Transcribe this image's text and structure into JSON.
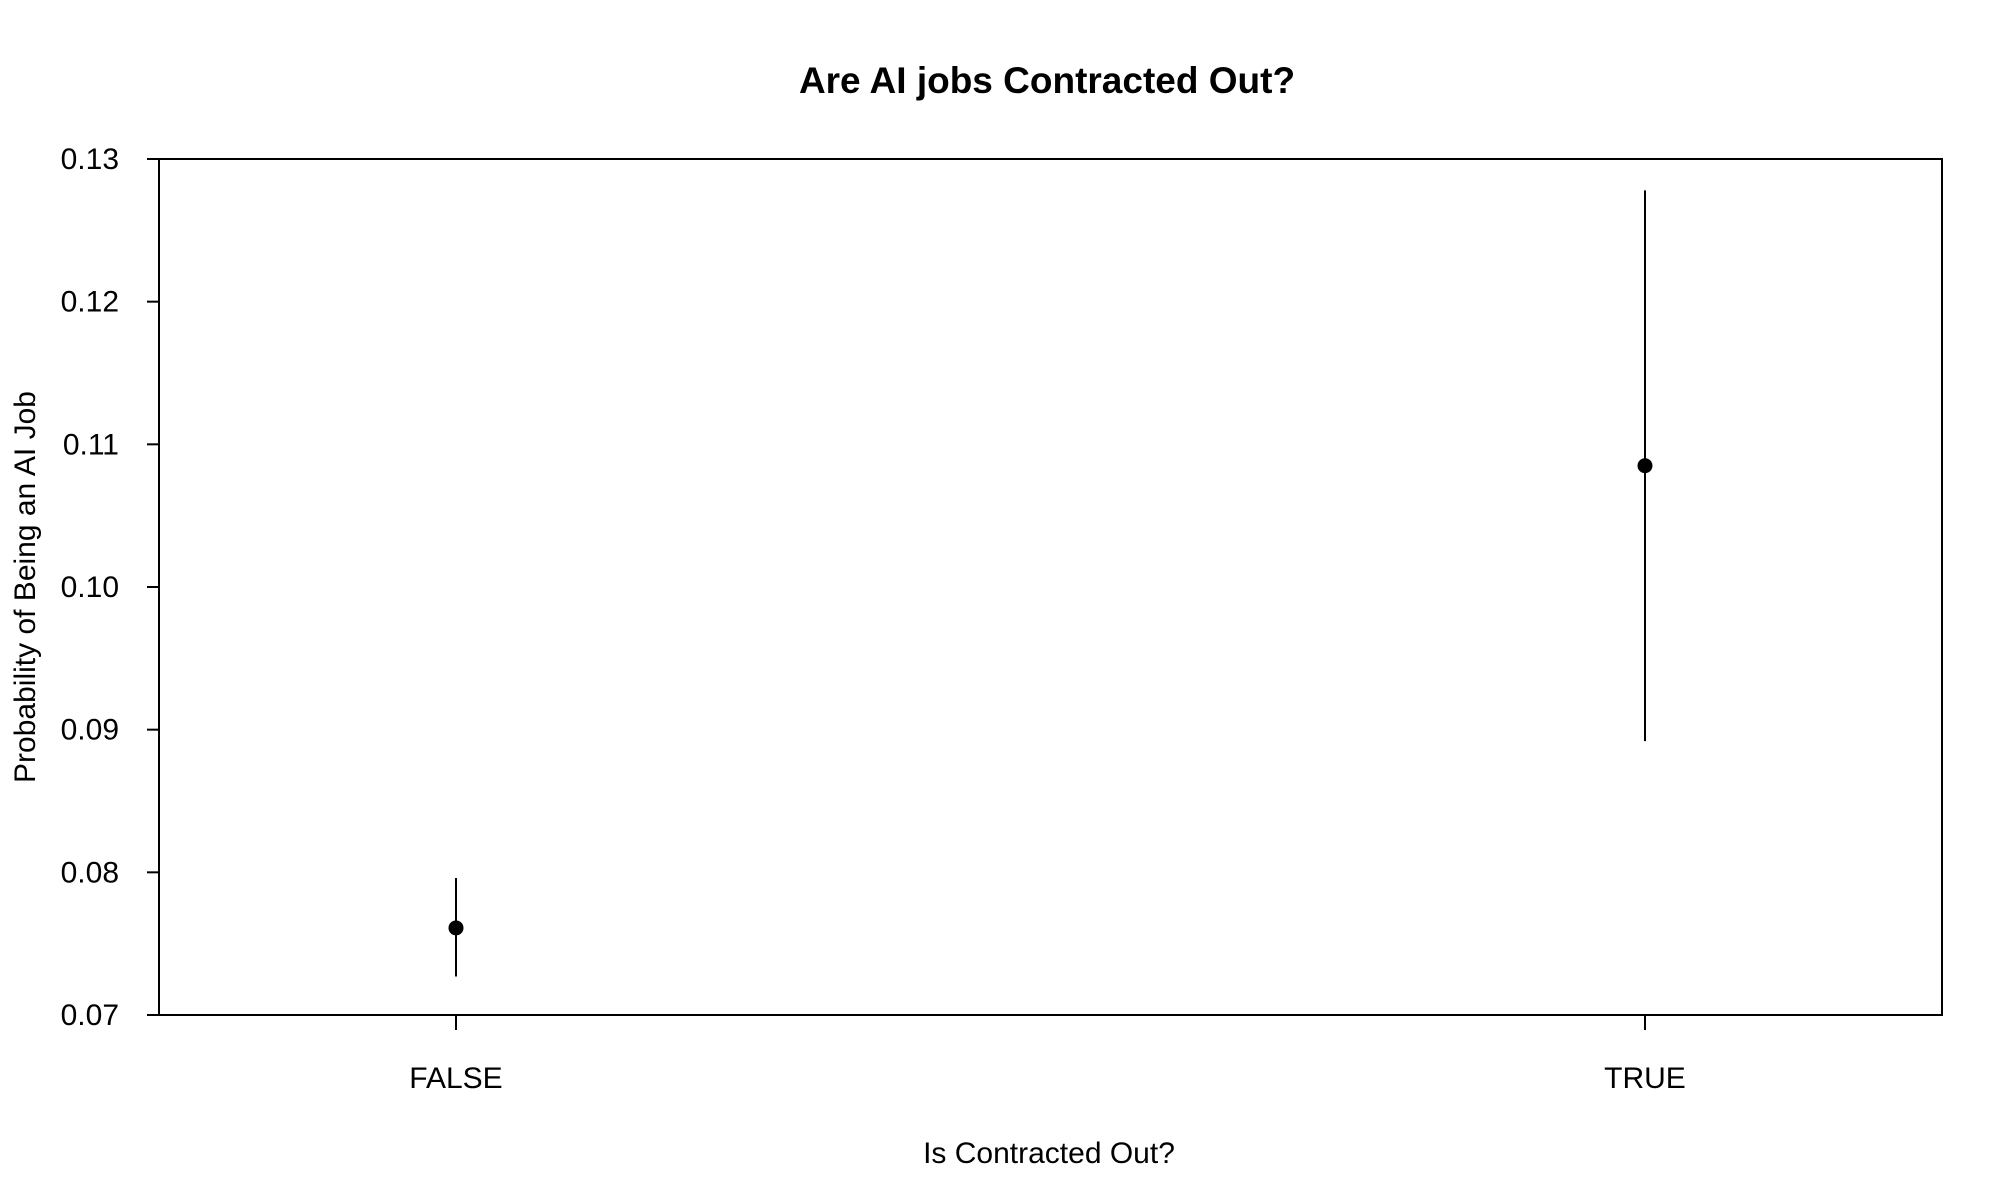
{
  "chart_data": {
    "type": "scatter",
    "title": "Are AI jobs Contracted Out?",
    "xlabel": "Is Contracted Out?",
    "ylabel": "Probability of Being an AI Job",
    "categories": [
      "FALSE",
      "TRUE"
    ],
    "points": [
      {
        "category": "FALSE",
        "estimate": 0.0761,
        "lower": 0.0727,
        "upper": 0.0796
      },
      {
        "category": "TRUE",
        "estimate": 0.1085,
        "lower": 0.0892,
        "upper": 0.1278
      }
    ],
    "ylim": [
      0.07,
      0.13
    ],
    "yticks": [
      0.07,
      0.08,
      0.09,
      0.1,
      0.11,
      0.12,
      0.13
    ],
    "ytick_labels": [
      "0.07",
      "0.08",
      "0.09",
      "0.10",
      "0.11",
      "0.12",
      "0.13"
    ],
    "grid": false,
    "legend": "none",
    "point_color": "#000000",
    "line_color": "#000000"
  }
}
